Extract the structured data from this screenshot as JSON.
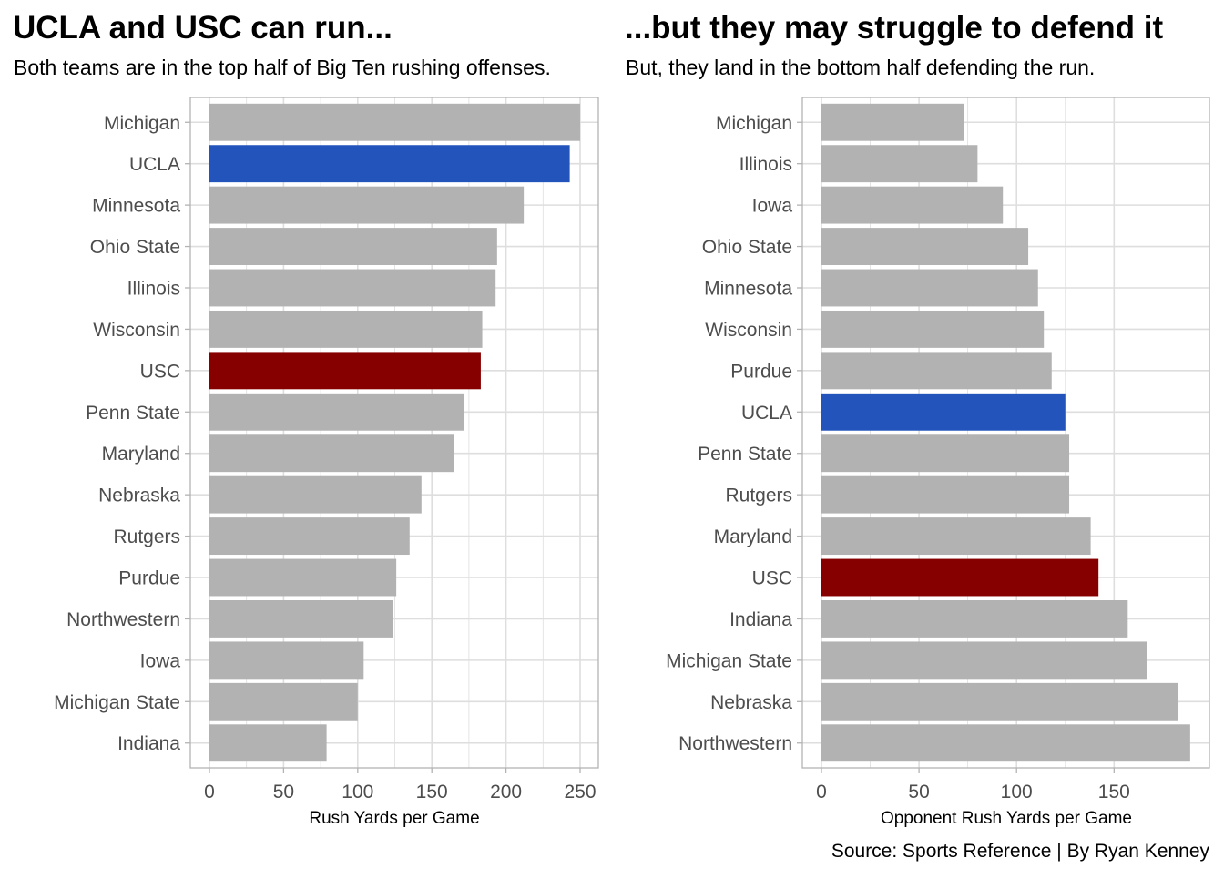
{
  "colors": {
    "default_bar": "#b2b2b2",
    "ucla": "#2354bb",
    "usc": "#870000",
    "grid": "#dedede",
    "panel_border": "#b3b3b3",
    "tick_text": "#4d4d4d",
    "title_text": "#000000"
  },
  "source_text": "Source: Sports Reference | By Ryan Kenney",
  "chart_data": [
    {
      "type": "bar",
      "orientation": "horizontal",
      "title": "UCLA and USC can run...",
      "subtitle": "Both teams are in the top half of Big Ten rushing offenses.",
      "xlabel": "Rush Yards per Game",
      "ylabel": "",
      "xlim": [
        0,
        250
      ],
      "xticks": [
        0,
        50,
        100,
        150,
        200,
        250
      ],
      "grid": true,
      "categories": [
        "Michigan",
        "UCLA",
        "Minnesota",
        "Ohio State",
        "Illinois",
        "Wisconsin",
        "USC",
        "Penn State",
        "Maryland",
        "Nebraska",
        "Rutgers",
        "Purdue",
        "Northwestern",
        "Iowa",
        "Michigan State",
        "Indiana"
      ],
      "values": [
        250,
        243,
        212,
        194,
        193,
        184,
        183,
        172,
        165,
        143,
        135,
        126,
        124,
        104,
        100,
        79
      ],
      "highlight": {
        "UCLA": "ucla",
        "USC": "usc"
      }
    },
    {
      "type": "bar",
      "orientation": "horizontal",
      "title": "...but they may struggle to defend it",
      "subtitle": "But, they land in the bottom half defending the run.",
      "xlabel": "Opponent Rush Yards per Game",
      "ylabel": "",
      "xlim": [
        0,
        190
      ],
      "xticks": [
        0,
        50,
        100,
        150
      ],
      "grid": true,
      "categories": [
        "Michigan",
        "Illinois",
        "Iowa",
        "Ohio State",
        "Minnesota",
        "Wisconsin",
        "Purdue",
        "UCLA",
        "Penn State",
        "Rutgers",
        "Maryland",
        "USC",
        "Indiana",
        "Michigan State",
        "Nebraska",
        "Northwestern"
      ],
      "values": [
        73,
        80,
        93,
        106,
        111,
        114,
        118,
        125,
        127,
        127,
        138,
        142,
        157,
        167,
        183,
        189
      ],
      "highlight": {
        "UCLA": "ucla",
        "USC": "usc"
      }
    }
  ]
}
